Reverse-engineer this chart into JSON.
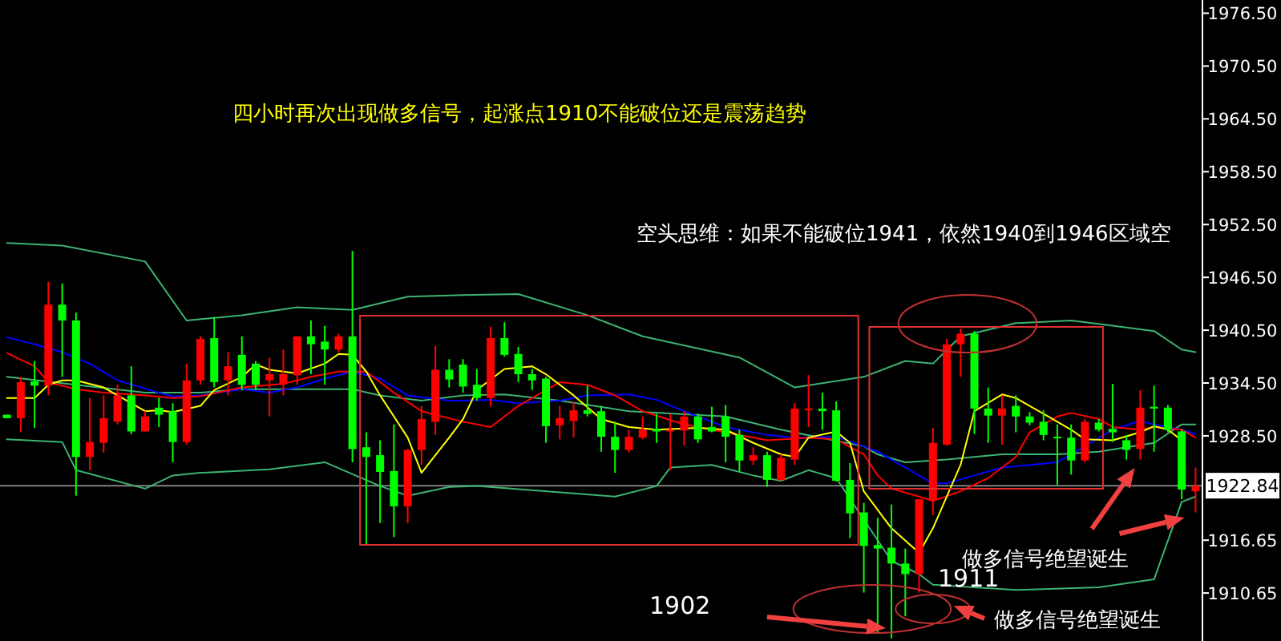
{
  "chart_data": {
    "type": "candlestick",
    "categories": [
      null,
      null,
      null,
      null,
      null,
      null,
      null,
      null,
      null,
      null,
      null,
      null,
      null,
      null,
      null,
      null,
      null,
      null,
      null,
      null,
      null,
      null,
      null,
      null,
      null,
      null,
      null,
      null,
      null,
      null,
      null,
      null,
      null,
      null,
      null,
      null,
      null,
      null,
      null,
      null,
      null,
      null,
      null,
      null,
      null,
      null,
      null,
      null,
      null,
      null,
      null,
      null,
      null,
      null,
      null,
      null,
      null,
      null,
      null,
      null,
      null,
      null,
      null,
      null,
      null,
      null,
      null,
      null,
      null,
      null,
      null,
      null,
      null,
      null,
      null,
      null,
      null,
      null,
      null,
      null,
      null,
      null,
      null,
      null,
      null,
      null,
      null
    ],
    "ohlc": [
      [
        1930.9,
        1930.9,
        1930.5,
        1930.5
      ],
      [
        1930.5,
        1935.2,
        1928.9,
        1934.6
      ],
      [
        1934.7,
        1937.0,
        1929.4,
        1934.2
      ],
      [
        1934.2,
        1946.0,
        1933.1,
        1943.4
      ],
      [
        1943.4,
        1945.8,
        1935.2,
        1941.6
      ],
      [
        1941.6,
        1942.5,
        1921.7,
        1926.1
      ],
      [
        1926.1,
        1932.8,
        1924.6,
        1927.8
      ],
      [
        1927.7,
        1933.1,
        1926.6,
        1930.5
      ],
      [
        1930.1,
        1934.3,
        1929.8,
        1933.1
      ],
      [
        1933.1,
        1936.4,
        1928.7,
        1929.0
      ],
      [
        1929.0,
        1931.3,
        1929.0,
        1930.7
      ],
      [
        1931.7,
        1932.8,
        1929.5,
        1930.9
      ],
      [
        1931.3,
        1932.2,
        1925.5,
        1927.8
      ],
      [
        1927.8,
        1936.7,
        1927.5,
        1934.8
      ],
      [
        1934.8,
        1939.8,
        1934.3,
        1939.5
      ],
      [
        1939.6,
        1942.0,
        1934.0,
        1934.6
      ],
      [
        1934.8,
        1938.0,
        1933.1,
        1936.4
      ],
      [
        1937.7,
        1939.8,
        1933.7,
        1934.3
      ],
      [
        1936.7,
        1937.0,
        1933.7,
        1934.3
      ],
      [
        1934.8,
        1937.4,
        1930.7,
        1935.5
      ],
      [
        1934.4,
        1938.3,
        1933.1,
        1935.5
      ],
      [
        1935.4,
        1939.8,
        1934.3,
        1939.8
      ],
      [
        1939.8,
        1941.6,
        1935.5,
        1938.9
      ],
      [
        1939.2,
        1941.0,
        1934.3,
        1938.3
      ],
      [
        1938.3,
        1940.1,
        1938.0,
        1939.8
      ],
      [
        1939.8,
        1949.5,
        1925.5,
        1927.0
      ],
      [
        1927.2,
        1928.9,
        1916.1,
        1926.1
      ],
      [
        1926.3,
        1928.0,
        1918.6,
        1924.4
      ],
      [
        1924.5,
        1929.8,
        1917.0,
        1920.5
      ],
      [
        1920.5,
        1927.0,
        1918.6,
        1926.9
      ],
      [
        1926.9,
        1931.9,
        1925.2,
        1930.4
      ],
      [
        1930.1,
        1938.7,
        1928.6,
        1936.0
      ],
      [
        1936.0,
        1937.2,
        1934.0,
        1934.9
      ],
      [
        1936.6,
        1937.2,
        1933.4,
        1934.1
      ],
      [
        1934.3,
        1936.1,
        1932.5,
        1932.8
      ],
      [
        1932.8,
        1940.9,
        1931.8,
        1939.6
      ],
      [
        1939.6,
        1941.4,
        1937.5,
        1937.7
      ],
      [
        1937.8,
        1938.6,
        1934.6,
        1935.5
      ],
      [
        1935.5,
        1936.1,
        1933.7,
        1934.8
      ],
      [
        1935.0,
        1935.2,
        1927.7,
        1929.6
      ],
      [
        1929.7,
        1931.9,
        1928.1,
        1930.5
      ],
      [
        1930.2,
        1932.4,
        1928.3,
        1931.4
      ],
      [
        1931.4,
        1934.2,
        1930.7,
        1931.0
      ],
      [
        1931.3,
        1931.9,
        1926.7,
        1928.4
      ],
      [
        1928.4,
        1930.1,
        1924.3,
        1926.9
      ],
      [
        1926.9,
        1929.2,
        1926.6,
        1928.4
      ],
      [
        1928.3,
        1930.7,
        1928.1,
        1929.2
      ],
      [
        1929.3,
        1931.0,
        1927.7,
        1929.0
      ],
      [
        1929.0,
        1931.0,
        1924.6,
        1929.2
      ],
      [
        1929.1,
        1931.3,
        1927.4,
        1930.7
      ],
      [
        1930.7,
        1931.0,
        1927.7,
        1928.1
      ],
      [
        1929.5,
        1931.8,
        1928.9,
        1929.0
      ],
      [
        1930.7,
        1932.0,
        1925.5,
        1928.4
      ],
      [
        1928.6,
        1929.2,
        1924.5,
        1925.7
      ],
      [
        1925.7,
        1927.2,
        1925.2,
        1926.3
      ],
      [
        1926.3,
        1926.7,
        1922.7,
        1923.5
      ],
      [
        1923.5,
        1926.4,
        1923.4,
        1926.0
      ],
      [
        1925.8,
        1932.2,
        1925.2,
        1931.6
      ],
      [
        1931.4,
        1935.4,
        1929.5,
        1931.6
      ],
      [
        1931.6,
        1933.4,
        1929.2,
        1931.3
      ],
      [
        1931.4,
        1932.4,
        1923.3,
        1923.4
      ],
      [
        1923.5,
        1925.4,
        1916.9,
        1919.7
      ],
      [
        1919.8,
        1920.9,
        1910.7,
        1916.0
      ],
      [
        1916.1,
        1919.2,
        1906.1,
        1915.7
      ],
      [
        1915.8,
        1920.7,
        1905.5,
        1914.0
      ],
      [
        1914.0,
        1915.7,
        1908.0,
        1912.8
      ],
      [
        1912.8,
        1921.3,
        1910.7,
        1921.3
      ],
      [
        1921.2,
        1929.4,
        1919.5,
        1927.7
      ],
      [
        1927.5,
        1939.5,
        1927.4,
        1938.9
      ],
      [
        1938.9,
        1940.7,
        1935.2,
        1940.1
      ],
      [
        1940.1,
        1940.4,
        1928.7,
        1931.6
      ],
      [
        1931.6,
        1934.0,
        1927.7,
        1930.8
      ],
      [
        1930.8,
        1933.1,
        1927.5,
        1931.6
      ],
      [
        1931.9,
        1933.1,
        1928.9,
        1930.7
      ],
      [
        1930.7,
        1931.2,
        1929.7,
        1930.0
      ],
      [
        1930.1,
        1931.4,
        1928.0,
        1928.6
      ],
      [
        1928.4,
        1929.8,
        1922.9,
        1928.3
      ],
      [
        1928.3,
        1929.8,
        1924.1,
        1925.7
      ],
      [
        1925.7,
        1930.4,
        1925.5,
        1930.1
      ],
      [
        1930.0,
        1930.4,
        1929.0,
        1929.2
      ],
      [
        1929.3,
        1934.4,
        1927.8,
        1928.9
      ],
      [
        1928.0,
        1928.6,
        1925.8,
        1926.9
      ],
      [
        1927.0,
        1933.7,
        1925.8,
        1931.7
      ],
      [
        1931.8,
        1934.2,
        1926.7,
        1931.6
      ],
      [
        1931.7,
        1932.0,
        1928.9,
        1929.2
      ],
      [
        1929.0,
        1929.2,
        1921.3,
        1922.4
      ],
      [
        1922.2,
        1924.9,
        1919.8,
        1922.8
      ]
    ],
    "series": [
      {
        "type": "line",
        "color": "#3cb371",
        "values": [
          1950.4,
          null,
          null,
          null,
          1950.1,
          null,
          null,
          null,
          null,
          null,
          1948.3,
          null,
          null,
          1941.6,
          null,
          null,
          null,
          1942.2,
          null,
          null,
          null,
          1943.1,
          null,
          null,
          null,
          1942.8,
          null,
          null,
          null,
          1944.3,
          null,
          null,
          null,
          1944.5,
          null,
          null,
          null,
          1944.6,
          null,
          null,
          null,
          null,
          1942.2,
          null,
          null,
          null,
          1939.8,
          null,
          null,
          null,
          null,
          null,
          null,
          1937.4,
          null,
          null,
          null,
          1934.0,
          null,
          null,
          null,
          null,
          1935.2,
          null,
          null,
          1937.0,
          null,
          1936.7,
          null,
          1939.8,
          null,
          null,
          null,
          1941.3,
          null,
          null,
          null,
          1941.6,
          null,
          null,
          1941.0,
          null,
          null,
          1940.4,
          null,
          1938.3,
          1938.0
        ]
      },
      {
        "type": "line",
        "color": "#3cb371",
        "values": [
          1935.2,
          null,
          null,
          null,
          null,
          1934.3,
          null,
          null,
          null,
          null,
          1933.4,
          null,
          null,
          null,
          1933.4,
          null,
          null,
          1933.8,
          null,
          null,
          null,
          null,
          null,
          null,
          null,
          1933.8,
          null,
          1933.1,
          null,
          null,
          1932.5,
          null,
          null,
          1933.1,
          null,
          null,
          1933.2,
          null,
          null,
          null,
          1932.5,
          null,
          null,
          null,
          null,
          1931.3,
          null,
          null,
          null,
          null,
          null,
          null,
          1930.7,
          null,
          null,
          null,
          1929.2,
          null,
          null,
          null,
          null,
          null,
          1927.3,
          1926.4,
          null,
          1925.5,
          null,
          null,
          1925.8,
          null,
          null,
          null,
          1926.4,
          null,
          null,
          null,
          1926.4,
          null,
          null,
          1926.7,
          null,
          null,
          null,
          1927.7,
          null,
          1929.8,
          1929.8
        ]
      },
      {
        "type": "line",
        "color": "#3cb371",
        "values": [
          1928.1,
          null,
          null,
          null,
          1927.8,
          1924.6,
          null,
          null,
          null,
          null,
          1922.5,
          null,
          1924.0,
          null,
          1924.3,
          null,
          null,
          null,
          null,
          1924.7,
          null,
          null,
          null,
          1925.5,
          null,
          null,
          null,
          1922.8,
          null,
          1921.7,
          null,
          null,
          1922.7,
          null,
          1922.8,
          null,
          null,
          null,
          null,
          null,
          null,
          null,
          null,
          null,
          1921.6,
          null,
          null,
          1922.8,
          1924.9,
          null,
          null,
          1925.2,
          null,
          null,
          1924.0,
          null,
          1923.4,
          null,
          1924.6,
          null,
          1923.7,
          null,
          null,
          null,
          1914.3,
          null,
          1912.8,
          1911.6,
          null,
          null,
          null,
          null,
          null,
          1911.0,
          null,
          null,
          null,
          null,
          null,
          1911.3,
          null,
          null,
          null,
          1912.2,
          null,
          1921.0,
          1921.6
        ]
      },
      {
        "type": "line",
        "color": "#0000ff",
        "values": [
          1939.7,
          null,
          1938.9,
          null,
          1938.0,
          null,
          1936.7,
          null,
          1934.8,
          null,
          null,
          1933.4,
          1933.0,
          null,
          1933.1,
          null,
          null,
          1933.8,
          null,
          1933.4,
          null,
          1934.0,
          null,
          1935.0,
          null,
          1935.8,
          null,
          1935.0,
          null,
          1933.1,
          null,
          null,
          1932.5,
          1932.5,
          null,
          1932.6,
          null,
          1932.2,
          null,
          null,
          1932.5,
          null,
          1933.1,
          null,
          null,
          1933.2,
          null,
          1932.6,
          null,
          1931.3,
          null,
          null,
          1929.5,
          null,
          null,
          1928.6,
          null,
          1928.3,
          null,
          null,
          1928.4,
          null,
          1927.3,
          1926.7,
          1925.8,
          null,
          1924.0,
          1923.1,
          1923.1,
          null,
          1924.0,
          null,
          1924.9,
          null,
          1925.2,
          null,
          1925.5,
          null,
          1927.3,
          null,
          1929.2,
          null,
          1930.2,
          1929.8,
          null,
          1929.2,
          1928.7
        ]
      },
      {
        "type": "line",
        "color": "#ff0000",
        "values": [
          1937.9,
          null,
          1936.4,
          1934.6,
          null,
          1933.8,
          null,
          1933.4,
          null,
          null,
          1933.1,
          null,
          1932.8,
          null,
          1933.0,
          null,
          null,
          1934.0,
          null,
          null,
          1934.4,
          null,
          1935.2,
          null,
          1935.8,
          null,
          1935.8,
          null,
          1933.4,
          null,
          1931.3,
          null,
          null,
          1930.1,
          null,
          1929.5,
          null,
          1931.9,
          null,
          null,
          1934.6,
          null,
          1934.3,
          null,
          1933.1,
          null,
          1931.3,
          null,
          null,
          1929.8,
          null,
          null,
          1928.9,
          null,
          null,
          1928.0,
          null,
          null,
          1928.3,
          null,
          1928.1,
          null,
          1926.4,
          1924.0,
          1922.5,
          null,
          1921.6,
          1921.1,
          null,
          1922.2,
          null,
          1923.7,
          null,
          1926.1,
          1928.9,
          null,
          1930.7,
          1931.1,
          null,
          1930.4,
          1929.5,
          null,
          1929.2,
          1929.5,
          null,
          1929.2,
          1928.3
        ]
      },
      {
        "type": "line",
        "color": "#ffff00",
        "values": [
          1932.8,
          null,
          1932.8,
          1934.3,
          1934.8,
          1934.8,
          null,
          1934.0,
          1933.1,
          null,
          1931.3,
          1931.4,
          1931.2,
          null,
          1931.9,
          1933.7,
          null,
          1935.2,
          1936.6,
          1936.0,
          null,
          1935.6,
          null,
          1936.7,
          1937.8,
          1937.7,
          1935.8,
          1933.1,
          null,
          1928.3,
          1924.3,
          null,
          1928.3,
          1930.4,
          1933.7,
          null,
          1936.1,
          null,
          1936.4,
          1935.5,
          null,
          1933.1,
          null,
          1930.4,
          null,
          1929.5,
          null,
          1929.2,
          null,
          null,
          1929.4,
          null,
          1929.2,
          null,
          1927.7,
          null,
          1926.4,
          1926.1,
          1928.3,
          null,
          1929.0,
          1927.7,
          1922.2,
          null,
          1918.0,
          null,
          1915.2,
          1918.0,
          null,
          1925.2,
          1931.3,
          null,
          1933.2,
          1932.8,
          null,
          1931.0,
          null,
          1929.2,
          1928.1,
          null,
          1928.0,
          null,
          1928.9,
          1929.6,
          1929.2,
          1928.0,
          null
        ]
      }
    ],
    "ylim": [
      1905.2,
      1978
    ],
    "yticks": [
      {
        "value": 1976.5,
        "label": "1976.50"
      },
      {
        "value": 1970.5,
        "label": "1970.50"
      },
      {
        "value": 1964.5,
        "label": "1964.50"
      },
      {
        "value": 1958.5,
        "label": "1958.50"
      },
      {
        "value": 1952.5,
        "label": "1952.50"
      },
      {
        "value": 1946.5,
        "label": "1946.50"
      },
      {
        "value": 1940.5,
        "label": "1940.50"
      },
      {
        "value": 1934.5,
        "label": "1934.50"
      },
      {
        "value": 1928.5,
        "label": "1928.50"
      },
      {
        "value": 1916.65,
        "label": "1916.65"
      },
      {
        "value": 1910.65,
        "label": "1910.65"
      }
    ],
    "ref_lines": [
      {
        "axis": "y",
        "value": 1922.84,
        "label": "1922.84",
        "color": "#808080"
      }
    ],
    "tick_labels": "y",
    "annotations": [
      "四小时再次出现做多信号，起涨点1910不能破位还是震荡趋势",
      "空头思维：如果不能破位1941，依然1940到1946区域空",
      "1902",
      "1911",
      "做多信号绝望诞生",
      "做多信号绝望诞生"
    ]
  }
}
